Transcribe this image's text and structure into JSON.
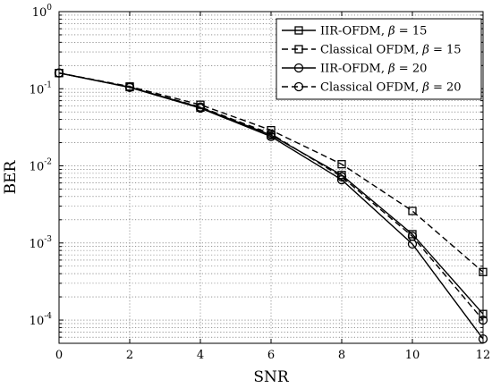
{
  "chart_data": {
    "type": "line",
    "xlabel": "SNR",
    "ylabel": "BER",
    "xlim": [
      0,
      12
    ],
    "ylim": [
      5e-05,
      1
    ],
    "yscale": "log",
    "grid": true,
    "legend_position": "top-right",
    "x_ticks": [
      "0",
      "2",
      "4",
      "6",
      "8",
      "10",
      "12"
    ],
    "y_ticks": [
      {
        "value": 1,
        "base": "10",
        "exp": "0"
      },
      {
        "value": 0.1,
        "base": "10",
        "exp": "-1"
      },
      {
        "value": 0.01,
        "base": "10",
        "exp": "-2"
      },
      {
        "value": 0.001,
        "base": "10",
        "exp": "-3"
      },
      {
        "value": 0.0001,
        "base": "10",
        "exp": "-4"
      }
    ],
    "x": [
      0,
      2,
      4,
      6,
      8,
      10,
      12
    ],
    "series": [
      {
        "name_prefix": "IIR-OFDM, ",
        "name_var": "β",
        "name_suffix": " = 15",
        "marker": "square",
        "dash": "solid",
        "values": [
          0.16,
          0.105,
          0.057,
          0.025,
          0.0076,
          0.0013,
          0.00012
        ]
      },
      {
        "name_prefix": "Classical OFDM, ",
        "name_var": "β",
        "name_suffix": " = 15",
        "marker": "square",
        "dash": "dashed",
        "values": [
          0.16,
          0.107,
          0.062,
          0.029,
          0.0105,
          0.0026,
          0.00042
        ]
      },
      {
        "name_prefix": "IIR-OFDM, ",
        "name_var": "β",
        "name_suffix": " = 20",
        "marker": "circle",
        "dash": "solid",
        "values": [
          0.16,
          0.104,
          0.056,
          0.024,
          0.0066,
          0.00097,
          5.7e-05
        ]
      },
      {
        "name_prefix": "Classical OFDM, ",
        "name_var": "β",
        "name_suffix": " = 20",
        "marker": "circle",
        "dash": "dashed",
        "values": [
          0.16,
          0.105,
          0.058,
          0.026,
          0.0072,
          0.00122,
          0.0001
        ]
      }
    ]
  }
}
